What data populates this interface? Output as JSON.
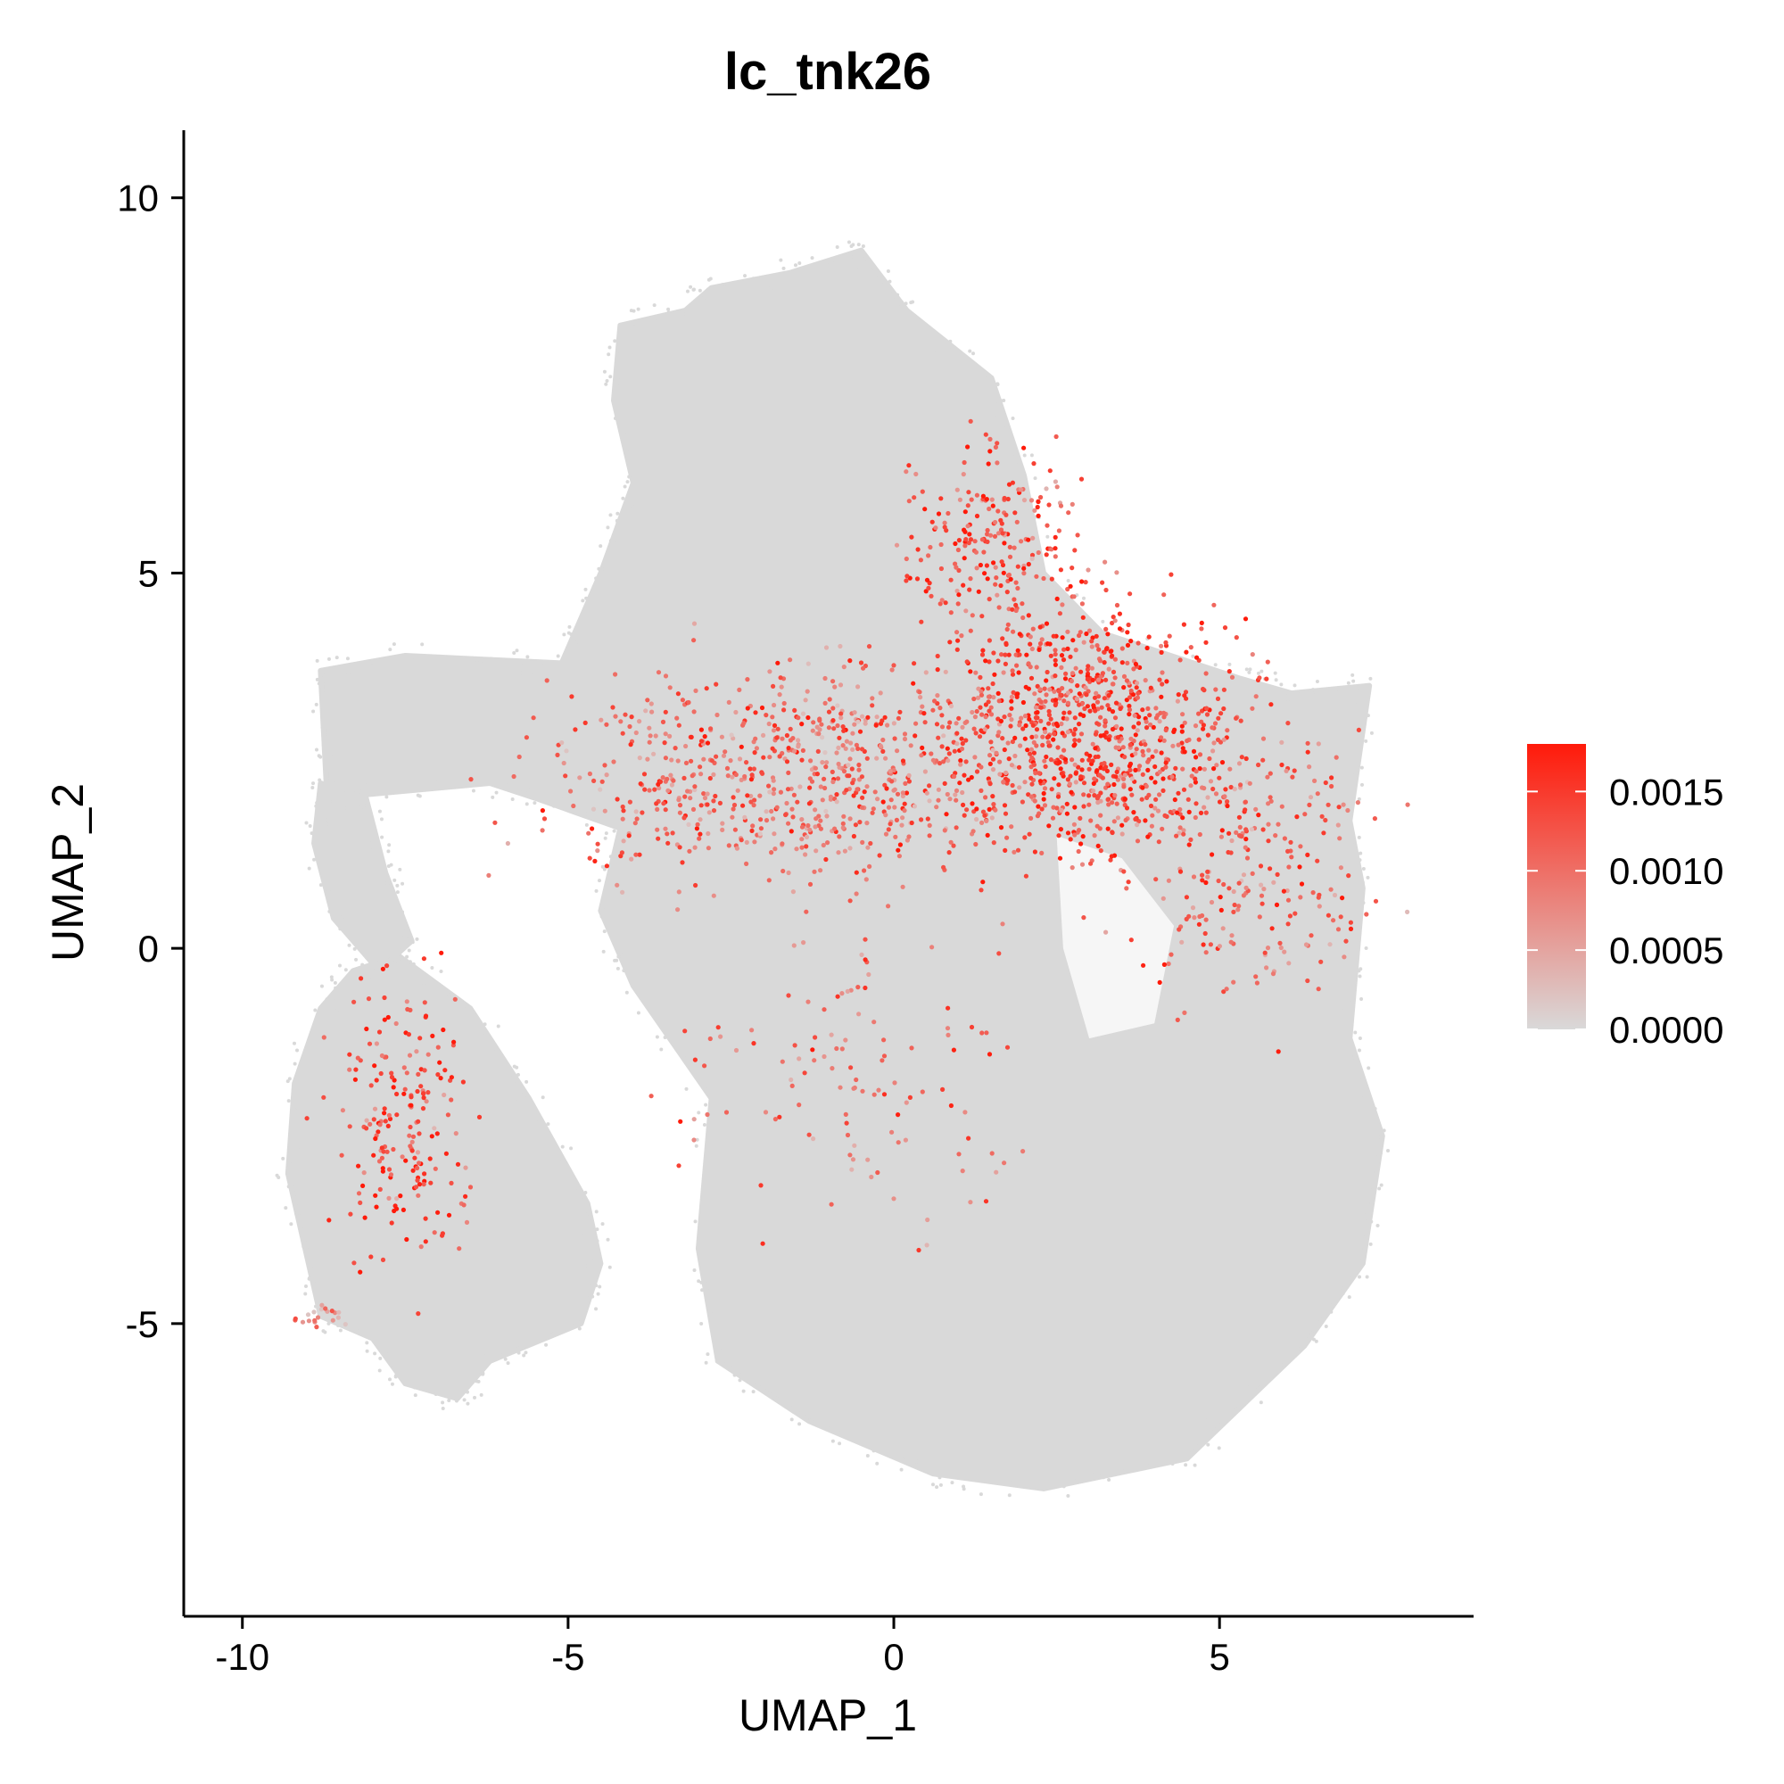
{
  "chart_data": {
    "type": "scatter",
    "title": "lc_tnk26",
    "xlabel": "UMAP_1",
    "ylabel": "UMAP_2",
    "xlim": [
      -10.9,
      8.9
    ],
    "ylim": [
      -8.9,
      10.9
    ],
    "x_ticks": [
      -10,
      -5,
      0,
      5
    ],
    "x_tick_labels": [
      "-10",
      "-5",
      "0",
      "5"
    ],
    "y_ticks": [
      -5,
      0,
      5,
      10
    ],
    "y_tick_labels": [
      "-5",
      "0",
      "5",
      "10"
    ],
    "grid": false,
    "legend": {
      "placement": "right",
      "kind": "colorbar",
      "min": 0,
      "max": 0.0018,
      "ticks": [
        0,
        0.0005,
        0.001,
        0.0015
      ],
      "tick_labels": [
        "0.0000",
        "0.0005",
        "0.0010",
        "0.0015"
      ],
      "low_color": "#d9d9d9",
      "high_color": "#ff1a0a"
    },
    "background_cells_color": "#d9d9d9",
    "outline_clusters": [
      {
        "name": "main",
        "polygon": [
          [
            -5.1,
            3.8
          ],
          [
            -4.5,
            5.0
          ],
          [
            -4.0,
            6.2
          ],
          [
            -4.3,
            7.3
          ],
          [
            -4.2,
            8.3
          ],
          [
            -3.2,
            8.5
          ],
          [
            -2.8,
            8.8
          ],
          [
            -1.6,
            9.0
          ],
          [
            -0.5,
            9.3
          ],
          [
            0.2,
            8.5
          ],
          [
            1.5,
            7.6
          ],
          [
            2.0,
            6.3
          ],
          [
            2.3,
            5.0
          ],
          [
            3.2,
            4.2
          ],
          [
            5.3,
            3.6
          ],
          [
            6.1,
            3.4
          ],
          [
            7.3,
            3.5
          ],
          [
            7.0,
            1.7
          ],
          [
            7.2,
            0.8
          ],
          [
            7.0,
            -1.2
          ],
          [
            7.5,
            -2.5
          ],
          [
            7.2,
            -4.2
          ],
          [
            6.3,
            -5.3
          ],
          [
            4.5,
            -6.8
          ],
          [
            2.3,
            -7.2
          ],
          [
            0.6,
            -7.0
          ],
          [
            -1.3,
            -6.3
          ],
          [
            -2.7,
            -5.5
          ],
          [
            -3.0,
            -4.0
          ],
          [
            -2.8,
            -2.0
          ],
          [
            -4.0,
            -0.5
          ],
          [
            -4.5,
            0.5
          ],
          [
            -4.2,
            1.6
          ],
          [
            -5.5,
            2.0
          ],
          [
            -6.2,
            2.2
          ],
          [
            -8.7,
            2.0
          ],
          [
            -8.8,
            3.7
          ],
          [
            -7.5,
            3.9
          ]
        ]
      },
      {
        "name": "bottom-left",
        "polygon": [
          [
            -8.3,
            -0.3
          ],
          [
            -7.6,
            -0.1
          ],
          [
            -6.5,
            -0.8
          ],
          [
            -5.6,
            -2.0
          ],
          [
            -4.7,
            -3.4
          ],
          [
            -4.5,
            -4.2
          ],
          [
            -4.8,
            -5.0
          ],
          [
            -6.2,
            -5.5
          ],
          [
            -6.7,
            -6.0
          ],
          [
            -7.5,
            -5.8
          ],
          [
            -8.0,
            -5.2
          ],
          [
            -8.8,
            -4.9
          ],
          [
            -9.3,
            -3.0
          ],
          [
            -9.2,
            -1.8
          ],
          [
            -8.8,
            -0.8
          ]
        ]
      },
      {
        "name": "left-arm",
        "polygon": [
          [
            -8.8,
            2.2
          ],
          [
            -8.1,
            2.0
          ],
          [
            -7.8,
            1.0
          ],
          [
            -7.4,
            0.1
          ],
          [
            -7.9,
            -0.3
          ],
          [
            -8.6,
            0.4
          ],
          [
            -8.9,
            1.4
          ]
        ]
      },
      {
        "name": "gap-mid",
        "polygon": [
          [
            2.5,
            1.5
          ],
          [
            3.5,
            1.2
          ],
          [
            4.3,
            0.3
          ],
          [
            4.0,
            -1.0
          ],
          [
            3.0,
            -1.2
          ],
          [
            2.6,
            0.0
          ]
        ]
      }
    ],
    "expression_hotspots": [
      {
        "region": "upper-arm",
        "center": [
          1.5,
          5.5
        ],
        "spread": [
          0.7,
          0.6
        ],
        "mean_expression": 0.0013,
        "approx_cells": 220
      },
      {
        "region": "right-core",
        "center": [
          3.0,
          2.9
        ],
        "spread": [
          1.1,
          0.8
        ],
        "mean_expression": 0.0014,
        "approx_cells": 900
      },
      {
        "region": "center-band",
        "center": [
          -1.5,
          2.3
        ],
        "spread": [
          1.8,
          0.7
        ],
        "mean_expression": 0.0011,
        "approx_cells": 750
      },
      {
        "region": "right-lower",
        "center": [
          5.5,
          1.2
        ],
        "spread": [
          1.0,
          1.0
        ],
        "mean_expression": 0.0011,
        "approx_cells": 260
      },
      {
        "region": "center-lower",
        "center": [
          -0.6,
          -1.5
        ],
        "spread": [
          1.2,
          1.0
        ],
        "mean_expression": 0.001,
        "approx_cells": 120
      },
      {
        "region": "left-streak",
        "center": [
          -7.6,
          -2.3
        ],
        "spread": [
          0.5,
          0.9
        ],
        "mean_expression": 0.0014,
        "approx_cells": 200
      },
      {
        "region": "left-tip",
        "center": [
          -8.8,
          -4.9
        ],
        "spread": [
          0.2,
          0.1
        ],
        "mean_expression": 0.0008,
        "approx_cells": 20
      }
    ]
  }
}
